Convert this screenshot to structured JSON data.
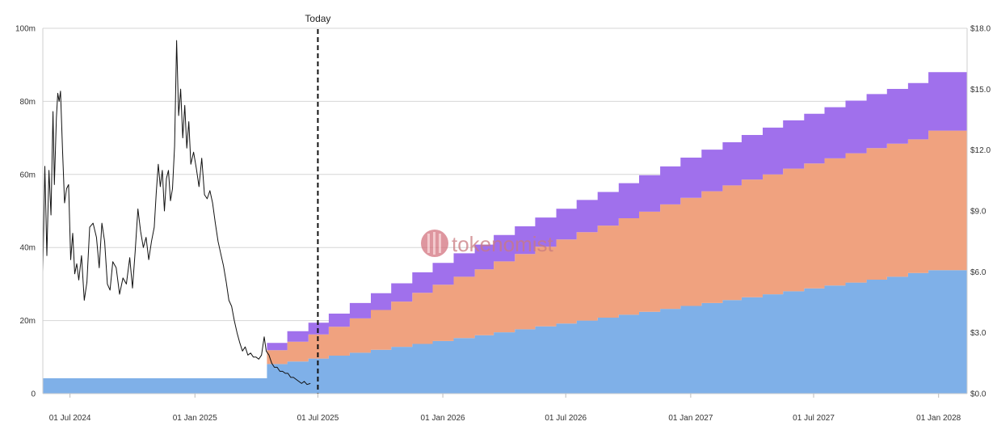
{
  "watermark": {
    "text": "tokenomist",
    "color": "#d4737f"
  },
  "chart_data": {
    "type": "area",
    "title": "",
    "xlabel": "",
    "ylabel": "",
    "x_range": [
      "2024-05-22",
      "2028-02-12"
    ],
    "x_ticks": [
      {
        "date": "2024-07-01",
        "label": "01 Jul 2024"
      },
      {
        "date": "2025-01-01",
        "label": "01 Jan 2025"
      },
      {
        "date": "2025-07-01",
        "label": "01 Jul 2025"
      },
      {
        "date": "2026-01-01",
        "label": "01 Jan 2026"
      },
      {
        "date": "2026-07-01",
        "label": "01 Jul 2026"
      },
      {
        "date": "2027-01-01",
        "label": "01 Jan 2027"
      },
      {
        "date": "2027-07-01",
        "label": "01 Jul 2027"
      },
      {
        "date": "2028-01-01",
        "label": "01 Jan 2028"
      }
    ],
    "y_left": {
      "range": [
        0,
        100
      ],
      "unit": "m",
      "ticks": [
        {
          "value": 0,
          "label": "0"
        },
        {
          "value": 20,
          "label": "20m"
        },
        {
          "value": 40,
          "label": "40m"
        },
        {
          "value": 60,
          "label": "60m"
        },
        {
          "value": 80,
          "label": "80m"
        },
        {
          "value": 100,
          "label": "100m"
        }
      ]
    },
    "y_right": {
      "range": [
        0,
        18
      ],
      "ticks": [
        {
          "value": 0,
          "label": "$0.0"
        },
        {
          "value": 3,
          "label": "$3.0"
        },
        {
          "value": 6,
          "label": "$6.0"
        },
        {
          "value": 9,
          "label": "$9.0"
        },
        {
          "value": 12,
          "label": "$12.0"
        },
        {
          "value": 15,
          "label": "$15.0"
        },
        {
          "value": 18,
          "label": "$18.0"
        }
      ]
    },
    "grid": true,
    "today": {
      "date": "2025-07-01",
      "label": "Today"
    },
    "stacked_series": [
      {
        "color": "#7fb0e8",
        "steps": [
          {
            "date": "2024-05-22",
            "value": 4.2
          },
          {
            "date": "2025-04-17",
            "value": 8.1
          },
          {
            "date": "2025-05-17",
            "value": 8.8
          },
          {
            "date": "2025-06-17",
            "value": 9.6
          },
          {
            "date": "2025-07-17",
            "value": 10.4
          },
          {
            "date": "2025-08-17",
            "value": 11.2
          },
          {
            "date": "2025-09-17",
            "value": 12.0
          },
          {
            "date": "2025-10-17",
            "value": 12.8
          },
          {
            "date": "2025-11-17",
            "value": 13.6
          },
          {
            "date": "2025-12-17",
            "value": 14.4
          },
          {
            "date": "2026-01-17",
            "value": 15.2
          },
          {
            "date": "2026-02-17",
            "value": 16.0
          },
          {
            "date": "2026-03-17",
            "value": 16.8
          },
          {
            "date": "2026-04-17",
            "value": 17.6
          },
          {
            "date": "2026-05-17",
            "value": 18.4
          },
          {
            "date": "2026-06-17",
            "value": 19.2
          },
          {
            "date": "2026-07-17",
            "value": 20.0
          },
          {
            "date": "2026-08-17",
            "value": 20.8
          },
          {
            "date": "2026-09-17",
            "value": 21.6
          },
          {
            "date": "2026-10-17",
            "value": 22.4
          },
          {
            "date": "2026-11-17",
            "value": 23.2
          },
          {
            "date": "2026-12-17",
            "value": 24.0
          },
          {
            "date": "2027-01-17",
            "value": 24.8
          },
          {
            "date": "2027-02-17",
            "value": 25.6
          },
          {
            "date": "2027-03-17",
            "value": 26.4
          },
          {
            "date": "2027-04-17",
            "value": 27.2
          },
          {
            "date": "2027-05-17",
            "value": 28.0
          },
          {
            "date": "2027-06-17",
            "value": 28.8
          },
          {
            "date": "2027-07-17",
            "value": 29.6
          },
          {
            "date": "2027-08-17",
            "value": 30.4
          },
          {
            "date": "2027-09-17",
            "value": 31.2
          },
          {
            "date": "2027-10-17",
            "value": 32.0
          },
          {
            "date": "2027-11-17",
            "value": 33.0
          },
          {
            "date": "2027-12-17",
            "value": 33.8
          }
        ]
      },
      {
        "color": "#f0a27f",
        "steps": [
          {
            "date": "2024-05-22",
            "value": 0
          },
          {
            "date": "2025-04-17",
            "value": 3.8
          },
          {
            "date": "2025-05-17",
            "value": 5.4
          },
          {
            "date": "2025-06-17",
            "value": 6.6
          },
          {
            "date": "2025-07-17",
            "value": 7.9
          },
          {
            "date": "2025-08-17",
            "value": 9.4
          },
          {
            "date": "2025-09-17",
            "value": 10.9
          },
          {
            "date": "2025-10-17",
            "value": 12.4
          },
          {
            "date": "2025-11-17",
            "value": 14.0
          },
          {
            "date": "2025-12-17",
            "value": 15.4
          },
          {
            "date": "2026-01-17",
            "value": 16.8
          },
          {
            "date": "2026-02-17",
            "value": 18.0
          },
          {
            "date": "2026-03-17",
            "value": 19.4
          },
          {
            "date": "2026-04-17",
            "value": 20.6
          },
          {
            "date": "2026-05-17",
            "value": 21.8
          },
          {
            "date": "2026-06-17",
            "value": 23.0
          },
          {
            "date": "2026-07-17",
            "value": 24.2
          },
          {
            "date": "2026-08-17",
            "value": 25.2
          },
          {
            "date": "2026-09-17",
            "value": 26.4
          },
          {
            "date": "2026-10-17",
            "value": 27.4
          },
          {
            "date": "2026-11-17",
            "value": 28.6
          },
          {
            "date": "2026-12-17",
            "value": 29.6
          },
          {
            "date": "2027-01-17",
            "value": 30.6
          },
          {
            "date": "2027-02-17",
            "value": 31.4
          },
          {
            "date": "2027-03-17",
            "value": 32.2
          },
          {
            "date": "2027-04-17",
            "value": 32.8
          },
          {
            "date": "2027-05-17",
            "value": 33.6
          },
          {
            "date": "2027-06-17",
            "value": 34.2
          },
          {
            "date": "2027-07-17",
            "value": 34.8
          },
          {
            "date": "2027-08-17",
            "value": 35.4
          },
          {
            "date": "2027-09-17",
            "value": 36.0
          },
          {
            "date": "2027-10-17",
            "value": 36.4
          },
          {
            "date": "2027-11-17",
            "value": 36.6
          },
          {
            "date": "2027-12-17",
            "value": 38.2
          }
        ]
      },
      {
        "color": "#a070ec",
        "steps": [
          {
            "date": "2024-05-22",
            "value": 0
          },
          {
            "date": "2025-04-17",
            "value": 2.0
          },
          {
            "date": "2025-05-17",
            "value": 2.9
          },
          {
            "date": "2025-06-17",
            "value": 3.2
          },
          {
            "date": "2025-07-17",
            "value": 3.6
          },
          {
            "date": "2025-08-17",
            "value": 4.2
          },
          {
            "date": "2025-09-17",
            "value": 4.6
          },
          {
            "date": "2025-10-17",
            "value": 5.0
          },
          {
            "date": "2025-11-17",
            "value": 5.6
          },
          {
            "date": "2025-12-17",
            "value": 6.0
          },
          {
            "date": "2026-01-17",
            "value": 6.4
          },
          {
            "date": "2026-02-17",
            "value": 6.8
          },
          {
            "date": "2026-03-17",
            "value": 7.2
          },
          {
            "date": "2026-04-17",
            "value": 7.6
          },
          {
            "date": "2026-05-17",
            "value": 8.0
          },
          {
            "date": "2026-06-17",
            "value": 8.4
          },
          {
            "date": "2026-07-17",
            "value": 8.8
          },
          {
            "date": "2026-08-17",
            "value": 9.2
          },
          {
            "date": "2026-09-17",
            "value": 9.6
          },
          {
            "date": "2026-10-17",
            "value": 10.0
          },
          {
            "date": "2026-11-17",
            "value": 10.4
          },
          {
            "date": "2026-12-17",
            "value": 11.0
          },
          {
            "date": "2027-01-17",
            "value": 11.4
          },
          {
            "date": "2027-02-17",
            "value": 11.8
          },
          {
            "date": "2027-03-17",
            "value": 12.2
          },
          {
            "date": "2027-04-17",
            "value": 12.8
          },
          {
            "date": "2027-05-17",
            "value": 13.2
          },
          {
            "date": "2027-06-17",
            "value": 13.6
          },
          {
            "date": "2027-07-17",
            "value": 14.0
          },
          {
            "date": "2027-08-17",
            "value": 14.4
          },
          {
            "date": "2027-09-17",
            "value": 14.8
          },
          {
            "date": "2027-10-17",
            "value": 15.0
          },
          {
            "date": "2027-11-17",
            "value": 15.4
          },
          {
            "date": "2027-12-17",
            "value": 16.0
          }
        ]
      }
    ],
    "price_line": {
      "axis": "right",
      "color": "#111111",
      "points": [
        [
          "2024-05-22",
          6.0
        ],
        [
          "2024-05-25",
          11.2
        ],
        [
          "2024-05-28",
          6.8
        ],
        [
          "2024-05-31",
          11.0
        ],
        [
          "2024-06-03",
          8.8
        ],
        [
          "2024-06-06",
          13.9
        ],
        [
          "2024-06-08",
          10.3
        ],
        [
          "2024-06-11",
          13.6
        ],
        [
          "2024-06-13",
          14.8
        ],
        [
          "2024-06-15",
          14.4
        ],
        [
          "2024-06-17",
          14.9
        ],
        [
          "2024-06-20",
          12.0
        ],
        [
          "2024-06-23",
          9.4
        ],
        [
          "2024-06-26",
          10.1
        ],
        [
          "2024-06-29",
          10.3
        ],
        [
          "2024-07-02",
          6.6
        ],
        [
          "2024-07-05",
          7.9
        ],
        [
          "2024-07-08",
          5.9
        ],
        [
          "2024-07-11",
          6.4
        ],
        [
          "2024-07-14",
          5.6
        ],
        [
          "2024-07-18",
          6.8
        ],
        [
          "2024-07-22",
          4.6
        ],
        [
          "2024-07-26",
          5.5
        ],
        [
          "2024-07-30",
          8.2
        ],
        [
          "2024-08-04",
          8.4
        ],
        [
          "2024-08-09",
          7.7
        ],
        [
          "2024-08-13",
          6.2
        ],
        [
          "2024-08-17",
          8.4
        ],
        [
          "2024-08-21",
          7.5
        ],
        [
          "2024-08-25",
          5.4
        ],
        [
          "2024-08-29",
          5.1
        ],
        [
          "2024-09-02",
          6.5
        ],
        [
          "2024-09-07",
          6.2
        ],
        [
          "2024-09-12",
          4.9
        ],
        [
          "2024-09-17",
          5.7
        ],
        [
          "2024-09-22",
          5.4
        ],
        [
          "2024-09-27",
          6.7
        ],
        [
          "2024-10-01",
          5.2
        ],
        [
          "2024-10-05",
          7.0
        ],
        [
          "2024-10-09",
          9.1
        ],
        [
          "2024-10-13",
          8.0
        ],
        [
          "2024-10-17",
          7.2
        ],
        [
          "2024-10-21",
          7.7
        ],
        [
          "2024-10-25",
          6.6
        ],
        [
          "2024-10-29",
          7.5
        ],
        [
          "2024-11-02",
          8.2
        ],
        [
          "2024-11-05",
          9.9
        ],
        [
          "2024-11-08",
          11.3
        ],
        [
          "2024-11-11",
          10.2
        ],
        [
          "2024-11-14",
          11.0
        ],
        [
          "2024-11-17",
          9.0
        ],
        [
          "2024-11-20",
          10.6
        ],
        [
          "2024-11-23",
          11.0
        ],
        [
          "2024-11-26",
          9.5
        ],
        [
          "2024-11-29",
          10.1
        ],
        [
          "2024-12-02",
          12.2
        ],
        [
          "2024-12-05",
          17.4
        ],
        [
          "2024-12-08",
          13.7
        ],
        [
          "2024-12-11",
          15.0
        ],
        [
          "2024-12-14",
          12.6
        ],
        [
          "2024-12-17",
          14.2
        ],
        [
          "2024-12-20",
          12.1
        ],
        [
          "2024-12-23",
          13.4
        ],
        [
          "2024-12-26",
          11.3
        ],
        [
          "2024-12-30",
          11.9
        ],
        [
          "2025-01-03",
          11.1
        ],
        [
          "2025-01-07",
          10.2
        ],
        [
          "2025-01-11",
          11.6
        ],
        [
          "2025-01-15",
          9.8
        ],
        [
          "2025-01-19",
          9.6
        ],
        [
          "2025-01-23",
          10.0
        ],
        [
          "2025-01-27",
          9.4
        ],
        [
          "2025-01-31",
          8.4
        ],
        [
          "2025-02-04",
          7.5
        ],
        [
          "2025-02-08",
          6.9
        ],
        [
          "2025-02-12",
          6.3
        ],
        [
          "2025-02-16",
          5.5
        ],
        [
          "2025-02-20",
          4.6
        ],
        [
          "2025-02-24",
          4.3
        ],
        [
          "2025-02-28",
          3.6
        ],
        [
          "2025-03-04",
          3.0
        ],
        [
          "2025-03-08",
          2.5
        ],
        [
          "2025-03-12",
          2.1
        ],
        [
          "2025-03-16",
          2.3
        ],
        [
          "2025-03-20",
          1.9
        ],
        [
          "2025-03-24",
          2.0
        ],
        [
          "2025-03-28",
          1.8
        ],
        [
          "2025-04-01",
          1.8
        ],
        [
          "2025-04-05",
          1.7
        ],
        [
          "2025-04-09",
          1.9
        ],
        [
          "2025-04-13",
          2.8
        ],
        [
          "2025-04-16",
          2.1
        ],
        [
          "2025-04-20",
          1.9
        ],
        [
          "2025-04-24",
          1.5
        ],
        [
          "2025-04-28",
          1.3
        ],
        [
          "2025-05-02",
          1.3
        ],
        [
          "2025-05-06",
          1.1
        ],
        [
          "2025-05-10",
          1.1
        ],
        [
          "2025-05-14",
          1.0
        ],
        [
          "2025-05-18",
          1.0
        ],
        [
          "2025-05-22",
          0.8
        ],
        [
          "2025-05-26",
          0.8
        ],
        [
          "2025-05-30",
          0.7
        ],
        [
          "2025-06-03",
          0.6
        ],
        [
          "2025-06-07",
          0.5
        ],
        [
          "2025-06-11",
          0.6
        ],
        [
          "2025-06-15",
          0.45
        ],
        [
          "2025-06-20",
          0.5
        ]
      ]
    }
  }
}
